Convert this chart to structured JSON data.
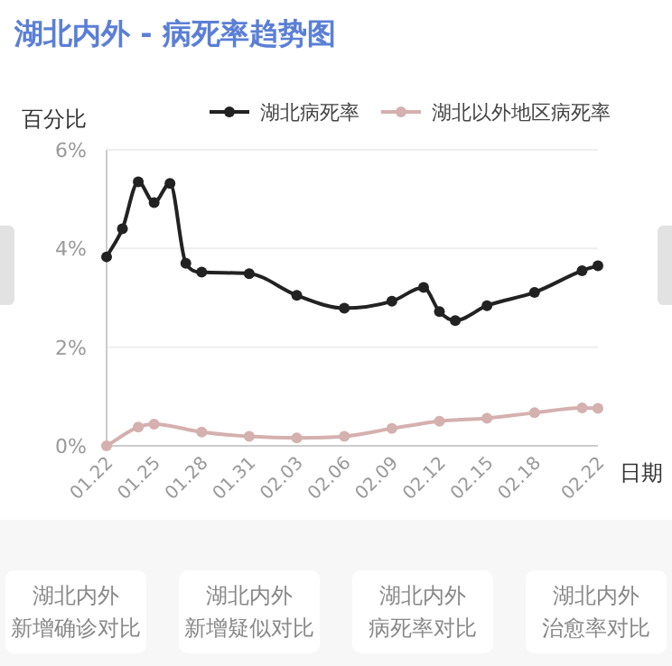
{
  "chart_data": {
    "type": "line",
    "title": "湖北内外 - 病死率趋势图",
    "ylabel": "百分比",
    "xlabel": "日期",
    "legend": "top",
    "grid": "y",
    "marker": "circle",
    "line_style": "solid",
    "xlim": [
      "--01-22",
      "--02-22"
    ],
    "xticks": [
      {
        "value": "--01-22",
        "label": "01.22"
      },
      {
        "value": "--01-25",
        "label": "01.25"
      },
      {
        "value": "--01-28",
        "label": "01.28"
      },
      {
        "value": "--01-31",
        "label": "01.31"
      },
      {
        "value": "--02-03",
        "label": "02.03"
      },
      {
        "value": "--02-06",
        "label": "02.06"
      },
      {
        "value": "--02-09",
        "label": "02.09"
      },
      {
        "value": "--02-12",
        "label": "02.12"
      },
      {
        "value": "--02-15",
        "label": "02.15"
      },
      {
        "value": "--02-18",
        "label": "02.18"
      },
      {
        "value": "--02-22",
        "label": "02.22"
      }
    ],
    "ylim": [
      0,
      6
    ],
    "yticks": [
      {
        "value": 0,
        "label": "0%"
      },
      {
        "value": 2,
        "label": "2%"
      },
      {
        "value": 4,
        "label": "4%"
      },
      {
        "value": 6,
        "label": "6%"
      }
    ],
    "series": [
      {
        "name": "湖北病死率",
        "color": "#222222",
        "x": [
          "--01-22",
          "--01-23",
          "--01-24",
          "--01-25",
          "--01-26",
          "--01-27",
          "--01-28",
          "--01-31",
          "--02-03",
          "--02-06",
          "--02-09",
          "--02-11",
          "--02-12",
          "--02-13",
          "--02-15",
          "--02-18",
          "--02-21",
          "--02-22"
        ],
        "values": [
          3.83,
          4.4,
          5.35,
          4.93,
          5.32,
          3.7,
          3.52,
          3.49,
          3.05,
          2.79,
          2.93,
          3.21,
          2.72,
          2.54,
          2.84,
          3.11,
          3.55,
          3.65
        ]
      },
      {
        "name": "湖北以外地区病死率",
        "color": "#d4b0ae",
        "x": [
          "--01-22",
          "--01-24",
          "--01-25",
          "--01-28",
          "--01-31",
          "--02-03",
          "--02-06",
          "--02-09",
          "--02-12",
          "--02-15",
          "--02-18",
          "--02-21",
          "--02-22"
        ],
        "values": [
          0,
          0.38,
          0.44,
          0.28,
          0.19,
          0.16,
          0.19,
          0.35,
          0.5,
          0.56,
          0.67,
          0.77,
          0.76
        ]
      }
    ],
    "annotations": [
      "湖北内外",
      "新增确诊对比",
      "湖北内外",
      "新增疑似对比",
      "湖北内外",
      "病死率对比",
      "湖北内外",
      "治愈率对比"
    ]
  }
}
